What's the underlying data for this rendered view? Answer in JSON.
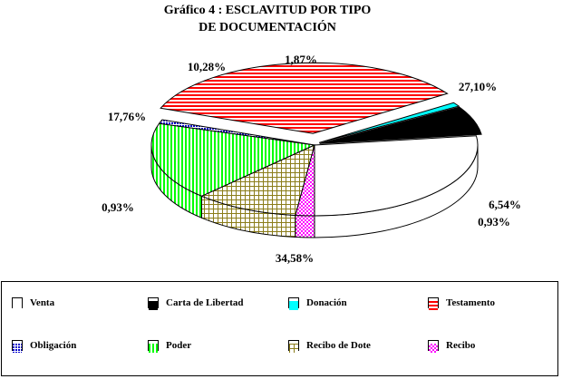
{
  "title_line1": "Gráfico 4 : ESCLAVITUD POR TIPO",
  "title_line2": "DE DOCUMENTACIÓN",
  "chart_data": {
    "type": "pie",
    "title": "Gráfico 4 : ESCLAVITUD POR TIPO DE DOCUMENTACIÓN",
    "style": "3d-exploded",
    "legend_position": "bottom",
    "slices": [
      {
        "name": "Venta",
        "value": 27.1,
        "label": "27,10%",
        "color": "#ffffff",
        "pattern": "solid"
      },
      {
        "name": "Carta de Libertad",
        "value": 6.54,
        "label": "6,54%",
        "color": "#000000",
        "pattern": "solid"
      },
      {
        "name": "Donación",
        "value": 0.93,
        "label": "0,93%",
        "color": "#00ffff",
        "pattern": "solid"
      },
      {
        "name": "Testamento",
        "value": 34.58,
        "label": "34,58%",
        "color": "#ff0000",
        "pattern": "horizontal-lines"
      },
      {
        "name": "Obligación",
        "value": 0.93,
        "label": "0,93%",
        "color": "#0000cc",
        "pattern": "dots"
      },
      {
        "name": "Poder",
        "value": 17.76,
        "label": "17,76%",
        "color": "#00ff00",
        "pattern": "vertical-lines"
      },
      {
        "name": "Recibo de Dote",
        "value": 10.28,
        "label": "10,28%",
        "color": "#8b7d1a",
        "pattern": "grid"
      },
      {
        "name": "Recibo",
        "value": 1.87,
        "label": "1,87%",
        "color": "#ff00ff",
        "pattern": "checker"
      }
    ]
  }
}
